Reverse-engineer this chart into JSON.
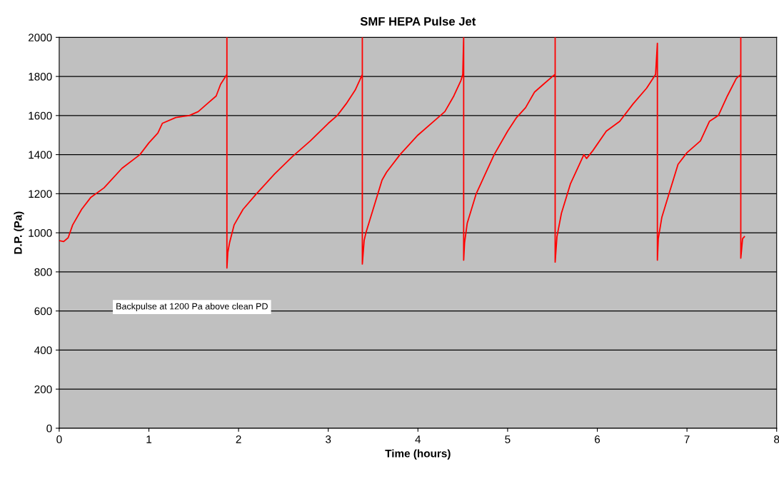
{
  "chart_data": {
    "type": "line",
    "title": "SMF HEPA Pulse Jet",
    "xlabel": "Time (hours)",
    "ylabel": "D.P. (Pa)",
    "annotations": [
      "Backpulse at 1200 Pa above clean PD"
    ],
    "xlim": [
      0,
      8
    ],
    "xticks": [
      0,
      1,
      2,
      3,
      4,
      5,
      6,
      7,
      8
    ],
    "ylim": [
      0,
      2000
    ],
    "yticks": [
      0,
      200,
      400,
      600,
      800,
      1000,
      1200,
      1400,
      1600,
      1800,
      2000
    ],
    "grid": "y",
    "marker": "none",
    "line_style": "solid",
    "series": [
      {
        "color": "#ff0000",
        "x": [
          0,
          0.05,
          0.1,
          0.15,
          0.25,
          0.35,
          0.5,
          0.7,
          0.9,
          1.0,
          1.1,
          1.15,
          1.3,
          1.45,
          1.55,
          1.65,
          1.75,
          1.8,
          1.87,
          1.87,
          1.87,
          1.88,
          1.9,
          1.95,
          2.05,
          2.2,
          2.4,
          2.6,
          2.8,
          3.0,
          3.1,
          3.2,
          3.3,
          3.38,
          3.38,
          3.38,
          3.38,
          3.4,
          3.42,
          3.5,
          3.6,
          3.65,
          3.8,
          4.0,
          4.2,
          4.3,
          4.4,
          4.48,
          4.5,
          4.51,
          4.51,
          4.52,
          4.55,
          4.65,
          4.75,
          4.85,
          5.0,
          5.1,
          5.2,
          5.3,
          5.4,
          5.5,
          5.53,
          5.53,
          5.53,
          5.55,
          5.6,
          5.7,
          5.8,
          5.85,
          5.88,
          5.95,
          6.1,
          6.25,
          6.4,
          6.55,
          6.65,
          6.67,
          6.67,
          6.68,
          6.72,
          6.8,
          6.9,
          7.0,
          7.15,
          7.25,
          7.35,
          7.45,
          7.55,
          7.6,
          7.6,
          7.6,
          7.62,
          7.64
        ],
        "values": [
          960,
          955,
          975,
          1040,
          1120,
          1180,
          1230,
          1330,
          1400,
          1460,
          1510,
          1560,
          1590,
          1600,
          1620,
          1660,
          1700,
          1760,
          1810,
          2000,
          820,
          900,
          950,
          1040,
          1120,
          1200,
          1300,
          1390,
          1470,
          1560,
          1600,
          1660,
          1730,
          1810,
          1710,
          2000,
          840,
          960,
          1000,
          1120,
          1270,
          1310,
          1400,
          1500,
          1580,
          1620,
          1700,
          1780,
          1810,
          2000,
          860,
          950,
          1050,
          1200,
          1300,
          1400,
          1520,
          1590,
          1640,
          1720,
          1760,
          1800,
          1810,
          2000,
          850,
          980,
          1100,
          1250,
          1350,
          1400,
          1380,
          1420,
          1520,
          1570,
          1660,
          1740,
          1810,
          1970,
          860,
          970,
          1080,
          1200,
          1350,
          1410,
          1470,
          1570,
          1600,
          1700,
          1790,
          1810,
          2000,
          870,
          970,
          980
        ]
      }
    ]
  }
}
